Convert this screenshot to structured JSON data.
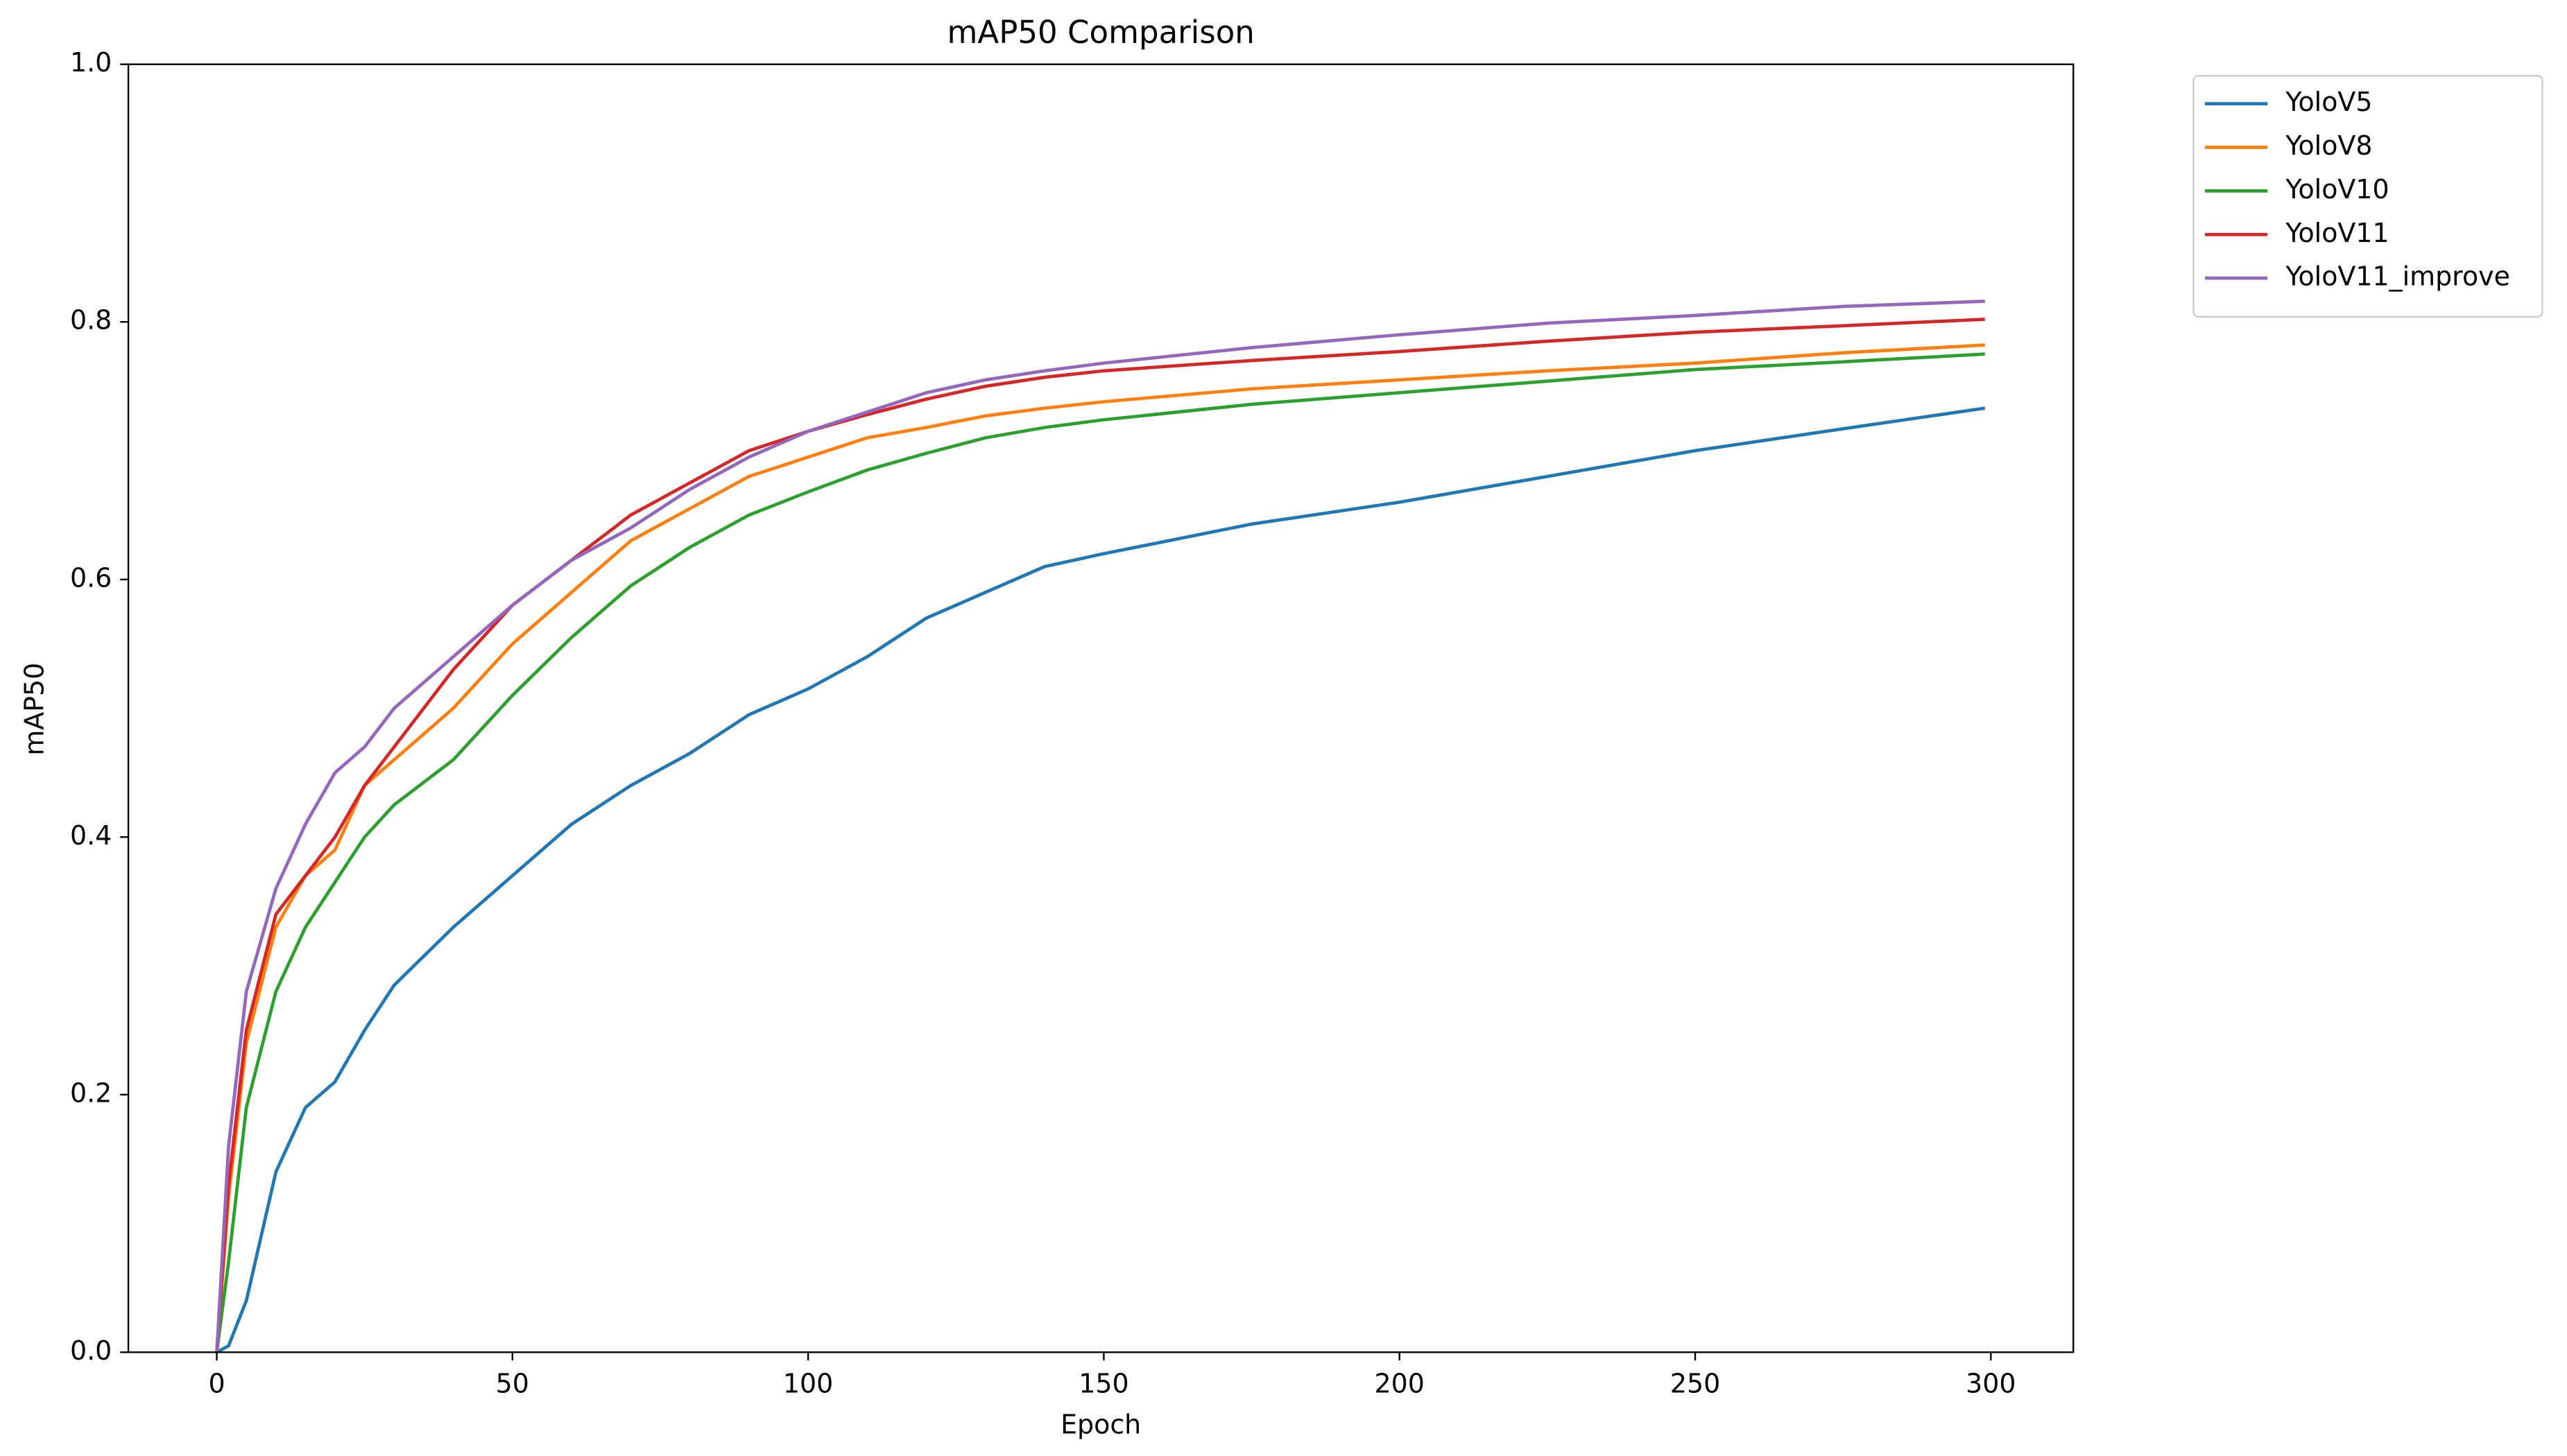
{
  "chart_data": {
    "type": "line",
    "title": "mAP50 Comparison",
    "x_label": "Epoch",
    "y_label": "mAP50",
    "x": [
      0,
      2,
      5,
      10,
      15,
      20,
      25,
      30,
      40,
      50,
      60,
      70,
      80,
      90,
      100,
      110,
      120,
      130,
      140,
      150,
      175,
      200,
      225,
      250,
      275,
      299
    ],
    "series": [
      {
        "name": "YoloV5",
        "color": "#1f77b4",
        "values": [
          0,
          0.005,
          0.04,
          0.14,
          0.19,
          0.21,
          0.25,
          0.285,
          0.33,
          0.37,
          0.41,
          0.44,
          0.465,
          0.495,
          0.515,
          0.54,
          0.57,
          0.59,
          0.61,
          0.62,
          0.643,
          0.66,
          0.68,
          0.7,
          0.717,
          0.733
        ]
      },
      {
        "name": "YoloV8",
        "color": "#ff7f0e",
        "values": [
          0,
          0.12,
          0.24,
          0.33,
          0.37,
          0.39,
          0.44,
          0.46,
          0.5,
          0.55,
          0.59,
          0.63,
          0.655,
          0.68,
          0.695,
          0.71,
          0.718,
          0.727,
          0.733,
          0.738,
          0.748,
          0.755,
          0.762,
          0.768,
          0.776,
          0.782
        ]
      },
      {
        "name": "YoloV10",
        "color": "#2ca02c",
        "values": [
          0,
          0.07,
          0.19,
          0.28,
          0.33,
          0.365,
          0.4,
          0.425,
          0.46,
          0.51,
          0.555,
          0.595,
          0.625,
          0.65,
          0.668,
          0.685,
          0.698,
          0.71,
          0.718,
          0.724,
          0.736,
          0.745,
          0.754,
          0.763,
          0.769,
          0.775
        ]
      },
      {
        "name": "YoloV11",
        "color": "#d62728",
        "values": [
          0,
          0.13,
          0.25,
          0.34,
          0.37,
          0.4,
          0.44,
          0.47,
          0.53,
          0.58,
          0.615,
          0.65,
          0.675,
          0.7,
          0.715,
          0.728,
          0.74,
          0.75,
          0.757,
          0.762,
          0.77,
          0.777,
          0.785,
          0.792,
          0.797,
          0.802
        ]
      },
      {
        "name": "YoloV11_improve",
        "color": "#9467bd",
        "values": [
          0,
          0.16,
          0.28,
          0.36,
          0.41,
          0.45,
          0.47,
          0.5,
          0.54,
          0.58,
          0.615,
          0.64,
          0.67,
          0.695,
          0.715,
          0.73,
          0.745,
          0.755,
          0.762,
          0.768,
          0.78,
          0.79,
          0.799,
          0.805,
          0.812,
          0.816
        ]
      }
    ],
    "xlim": [
      -14.95,
      313.95
    ],
    "xticks": [
      0,
      50,
      100,
      150,
      200,
      250,
      300
    ],
    "ylim": [
      0,
      1
    ],
    "yticks": [
      {
        "value": 0,
        "label": "0.0"
      },
      0.2,
      0.4,
      0.6,
      0.8,
      {
        "value": 1,
        "label": "1.0"
      }
    ],
    "grid": false,
    "legend": "outside"
  }
}
